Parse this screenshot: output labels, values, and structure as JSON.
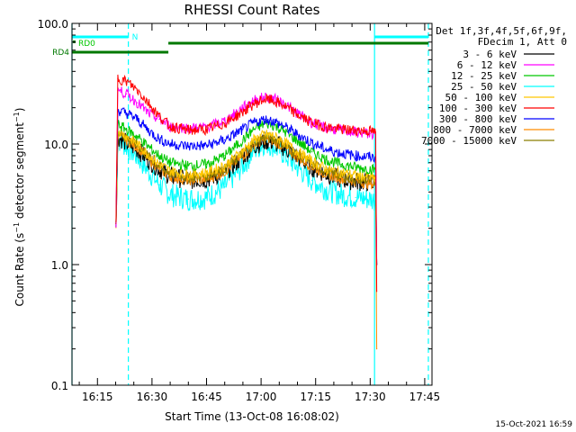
{
  "chart_data": {
    "type": "line",
    "title": "RHESSI Count Rates",
    "xlabel": "Start Time (13-Oct-08 16:08:02)",
    "ylabel": "Count Rate (s⁻¹ detector segment⁻¹)",
    "ylabel_base": "Count Rate (s",
    "ylabel_mid": " detector segment",
    "ylabel_end": ")",
    "ylabel_sup": "−1",
    "y_scale": "log",
    "ylim": [
      0.1,
      100
    ],
    "xlim_min": [
      8.0,
      107.0
    ],
    "x_ticks": [
      {
        "min": 15,
        "label": "16:15"
      },
      {
        "min": 30,
        "label": "16:30"
      },
      {
        "min": 45,
        "label": "16:45"
      },
      {
        "min": 60,
        "label": "17:00"
      },
      {
        "min": 75,
        "label": "17:15"
      },
      {
        "min": 90,
        "label": "17:30"
      },
      {
        "min": 105,
        "label": "17:45"
      }
    ],
    "y_ticks": [
      {
        "v": 0.1,
        "label": "0.1"
      },
      {
        "v": 1.0,
        "label": "1.0"
      },
      {
        "v": 10.0,
        "label": "10.0"
      },
      {
        "v": 100.0,
        "label": "100.0"
      }
    ],
    "legend_header": [
      "Det 1f,3f,4f,5f,6f,9f,",
      "FDecim 1, Att 0"
    ],
    "series": [
      {
        "name": "3 - 6 keV",
        "color": "#000000",
        "points": [
          [
            20.1,
            2.2
          ],
          [
            20.6,
            11.5
          ],
          [
            23,
            10.2
          ],
          [
            26,
            9.0
          ],
          [
            29,
            7.4
          ],
          [
            32,
            6.2
          ],
          [
            35,
            5.4
          ],
          [
            40,
            5.0
          ],
          [
            45,
            5.1
          ],
          [
            50,
            5.8
          ],
          [
            55,
            7.8
          ],
          [
            58,
            9.6
          ],
          [
            61,
            10.6
          ],
          [
            63,
            10.4
          ],
          [
            66,
            9.5
          ],
          [
            70,
            7.8
          ],
          [
            74,
            6.4
          ],
          [
            78,
            5.6
          ],
          [
            82,
            5.1
          ],
          [
            86,
            4.9
          ],
          [
            90,
            4.8
          ],
          [
            91.5,
            4.8
          ],
          [
            91.8,
            1.0
          ]
        ]
      },
      {
        "name": "6 - 12 keV",
        "color": "#ff00ff",
        "points": [
          [
            20.1,
            2.2
          ],
          [
            20.6,
            28
          ],
          [
            23,
            26
          ],
          [
            26,
            22
          ],
          [
            29,
            18
          ],
          [
            32,
            16
          ],
          [
            35,
            14
          ],
          [
            40,
            13.5
          ],
          [
            45,
            13.8
          ],
          [
            50,
            15.5
          ],
          [
            55,
            20
          ],
          [
            58,
            23
          ],
          [
            61,
            24.5
          ],
          [
            63,
            24
          ],
          [
            66,
            22
          ],
          [
            70,
            18
          ],
          [
            74,
            15
          ],
          [
            78,
            13.5
          ],
          [
            82,
            13
          ],
          [
            86,
            12.5
          ],
          [
            90,
            12.2
          ],
          [
            91.5,
            12
          ],
          [
            91.8,
            1.0
          ]
        ]
      },
      {
        "name": "12 - 25 keV",
        "color": "#00c800",
        "points": [
          [
            20.1,
            2.2
          ],
          [
            20.6,
            14.5
          ],
          [
            23,
            13.2
          ],
          [
            26,
            11.5
          ],
          [
            29,
            9.5
          ],
          [
            32,
            8.0
          ],
          [
            35,
            7.0
          ],
          [
            40,
            6.6
          ],
          [
            45,
            6.8
          ],
          [
            50,
            8.0
          ],
          [
            55,
            10.8
          ],
          [
            58,
            13.2
          ],
          [
            61,
            14.8
          ],
          [
            63,
            14.5
          ],
          [
            66,
            13.0
          ],
          [
            70,
            10.6
          ],
          [
            74,
            8.6
          ],
          [
            78,
            7.4
          ],
          [
            82,
            6.8
          ],
          [
            86,
            6.4
          ],
          [
            90,
            6.2
          ],
          [
            91.5,
            6.1
          ],
          [
            91.8,
            1.0
          ]
        ]
      },
      {
        "name": "25 - 50 keV",
        "color": "#00ffff",
        "points": [
          [
            20.1,
            2.2
          ],
          [
            20.6,
            11.0
          ],
          [
            23,
            9.5
          ],
          [
            26,
            7.8
          ],
          [
            29,
            6.0
          ],
          [
            32,
            4.6
          ],
          [
            35,
            3.8
          ],
          [
            40,
            3.5
          ],
          [
            45,
            3.6
          ],
          [
            50,
            4.4
          ],
          [
            55,
            6.6
          ],
          [
            58,
            8.8
          ],
          [
            61,
            10.2
          ],
          [
            63,
            9.8
          ],
          [
            66,
            8.4
          ],
          [
            70,
            6.4
          ],
          [
            74,
            5.0
          ],
          [
            78,
            4.2
          ],
          [
            82,
            3.8
          ],
          [
            86,
            3.6
          ],
          [
            90,
            3.5
          ],
          [
            91.5,
            3.4
          ],
          [
            91.8,
            1.0
          ]
        ]
      },
      {
        "name": "50 - 100 keV",
        "color": "#ffc800",
        "points": [
          [
            20.1,
            2.2
          ],
          [
            20.6,
            13.0
          ],
          [
            23,
            11.6
          ],
          [
            26,
            10.0
          ],
          [
            29,
            8.2
          ],
          [
            32,
            6.8
          ],
          [
            35,
            6.0
          ],
          [
            40,
            5.6
          ],
          [
            45,
            5.8
          ],
          [
            50,
            6.6
          ],
          [
            55,
            8.8
          ],
          [
            58,
            10.8
          ],
          [
            61,
            12.0
          ],
          [
            63,
            11.8
          ],
          [
            66,
            10.6
          ],
          [
            70,
            8.6
          ],
          [
            74,
            7.2
          ],
          [
            78,
            6.2
          ],
          [
            82,
            5.8
          ],
          [
            86,
            5.5
          ],
          [
            90,
            5.3
          ],
          [
            91.5,
            5.2
          ],
          [
            91.8,
            1.0
          ]
        ]
      },
      {
        "name": "100 - 300 keV",
        "color": "#ff0000",
        "points": [
          [
            20.1,
            2.2
          ],
          [
            20.6,
            35
          ],
          [
            23,
            33
          ],
          [
            26,
            28
          ],
          [
            29,
            22
          ],
          [
            32,
            17
          ],
          [
            35,
            14
          ],
          [
            40,
            13
          ],
          [
            45,
            13.2
          ],
          [
            50,
            14.8
          ],
          [
            55,
            18.5
          ],
          [
            58,
            21.5
          ],
          [
            61,
            23.5
          ],
          [
            63,
            23
          ],
          [
            66,
            21
          ],
          [
            70,
            17.5
          ],
          [
            74,
            15
          ],
          [
            78,
            13.8
          ],
          [
            82,
            13.2
          ],
          [
            86,
            13.0
          ],
          [
            90,
            12.8
          ],
          [
            91.5,
            12.5
          ],
          [
            91.8,
            0.6
          ]
        ]
      },
      {
        "name": "300 - 800 keV",
        "color": "#0000ff",
        "points": [
          [
            20.1,
            2.2
          ],
          [
            20.6,
            19
          ],
          [
            23,
            18
          ],
          [
            26,
            16
          ],
          [
            29,
            13
          ],
          [
            32,
            11
          ],
          [
            35,
            10
          ],
          [
            40,
            9.6
          ],
          [
            45,
            9.7
          ],
          [
            50,
            10.8
          ],
          [
            55,
            13.2
          ],
          [
            58,
            15.0
          ],
          [
            61,
            16.0
          ],
          [
            63,
            15.6
          ],
          [
            66,
            14.2
          ],
          [
            70,
            12.0
          ],
          [
            74,
            10.2
          ],
          [
            78,
            9.0
          ],
          [
            82,
            8.4
          ],
          [
            86,
            8.0
          ],
          [
            90,
            7.8
          ],
          [
            91.5,
            7.6
          ],
          [
            91.8,
            1.0
          ]
        ]
      },
      {
        "name": "800 - 7000 keV",
        "color": "#ff8c00",
        "points": [
          [
            20.1,
            2.2
          ],
          [
            20.6,
            12.0
          ],
          [
            23,
            10.8
          ],
          [
            26,
            9.4
          ],
          [
            29,
            7.6
          ],
          [
            32,
            6.2
          ],
          [
            35,
            5.4
          ],
          [
            40,
            5.0
          ],
          [
            45,
            5.1
          ],
          [
            50,
            5.9
          ],
          [
            55,
            8.0
          ],
          [
            58,
            9.8
          ],
          [
            61,
            10.9
          ],
          [
            63,
            10.7
          ],
          [
            66,
            9.6
          ],
          [
            70,
            7.8
          ],
          [
            74,
            6.5
          ],
          [
            78,
            5.6
          ],
          [
            82,
            5.2
          ],
          [
            86,
            4.9
          ],
          [
            90,
            4.7
          ],
          [
            91.5,
            4.6
          ],
          [
            91.8,
            0.2
          ]
        ]
      },
      {
        "name": "7000 - 15000 keV",
        "color": "#8b7d00",
        "points": [
          [
            20.1,
            2.2
          ],
          [
            20.6,
            12.5
          ],
          [
            23,
            11.2
          ],
          [
            26,
            9.8
          ],
          [
            29,
            7.9
          ],
          [
            32,
            6.5
          ],
          [
            35,
            5.7
          ],
          [
            40,
            5.3
          ],
          [
            45,
            5.4
          ],
          [
            50,
            6.2
          ],
          [
            55,
            8.4
          ],
          [
            58,
            10.3
          ],
          [
            61,
            11.4
          ],
          [
            63,
            11.2
          ],
          [
            66,
            10.1
          ],
          [
            70,
            8.2
          ],
          [
            74,
            6.8
          ],
          [
            78,
            5.9
          ],
          [
            82,
            5.4
          ],
          [
            86,
            5.1
          ],
          [
            90,
            4.9
          ],
          [
            91.5,
            4.8
          ],
          [
            91.8,
            1.0
          ]
        ]
      }
    ],
    "annotations": {
      "rd0_label": "RD0",
      "rd4_label": "RD4",
      "n_label": "N",
      "rd0_color": "#00c800",
      "rd4_color": "#007800",
      "cyan_color": "#00ffff",
      "cyan_top_bars": [
        [
          8.0,
          23.5
        ],
        [
          91.2,
          106.0
        ]
      ],
      "green_bars": [
        [
          34.5,
          106.0
        ]
      ],
      "rd4_bar": [
        8.0,
        34.5
      ],
      "solid_cyan_lines": [
        8.0,
        91.2
      ],
      "dashed_cyan_lines": [
        23.5,
        106.0
      ]
    }
  },
  "footer": {
    "timestamp": "15-Oct-2021 16:59"
  }
}
